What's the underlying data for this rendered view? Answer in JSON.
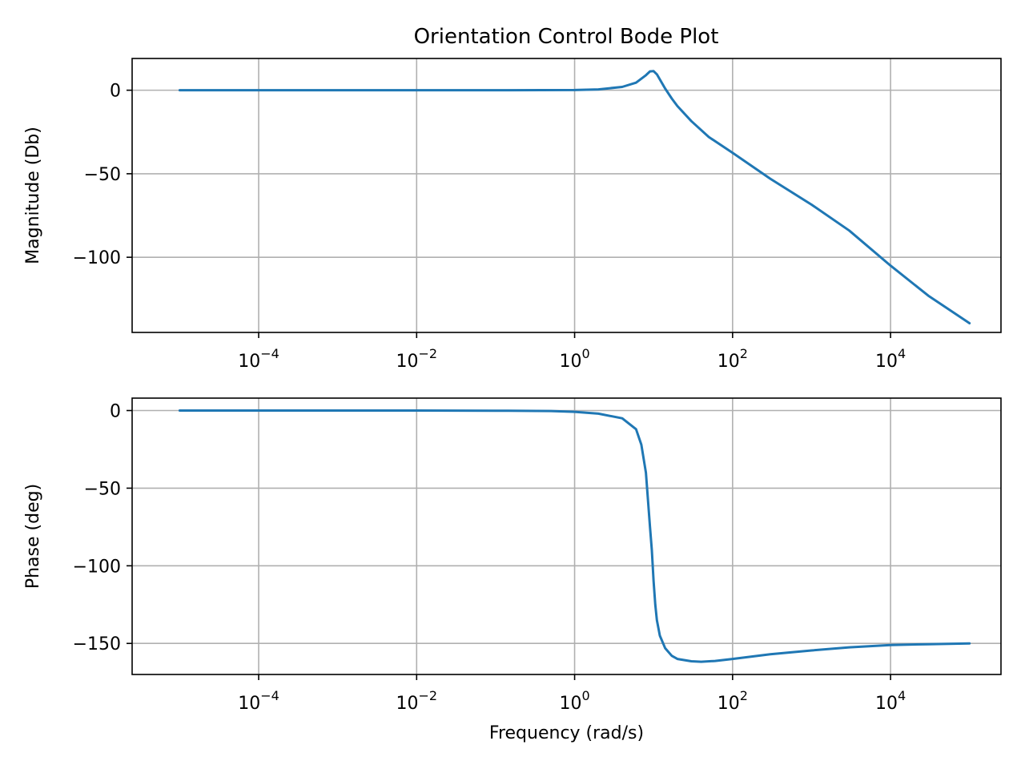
{
  "figure": {
    "title": "Orientation Control Bode Plot"
  },
  "chart_data": [
    {
      "type": "line",
      "panel": "magnitude",
      "title": "Orientation Control Bode Plot",
      "xlabel": "",
      "ylabel": "Magnitude (Db)",
      "xscale": "log",
      "xlim": [
        2.5e-06,
        250000
      ],
      "ylim": [
        -145,
        19
      ],
      "grid": true,
      "x_ticks": [
        {
          "value": 0.0001,
          "base": "10",
          "exp": "−4"
        },
        {
          "value": 0.01,
          "base": "10",
          "exp": "−2"
        },
        {
          "value": 1,
          "base": "10",
          "exp": "0"
        },
        {
          "value": 100,
          "base": "10",
          "exp": "2"
        },
        {
          "value": 10000,
          "base": "10",
          "exp": "4"
        }
      ],
      "y_ticks": [
        {
          "value": 0,
          "label": "0"
        },
        {
          "value": -50,
          "label": "−50"
        },
        {
          "value": -100,
          "label": "−100"
        }
      ],
      "series": [
        {
          "color": "#1f77b4",
          "x": [
            1e-05,
            0.0001,
            0.001,
            0.01,
            0.1,
            1,
            2,
            4,
            6,
            8,
            9,
            10,
            11,
            12,
            14,
            17,
            20,
            30,
            50,
            100,
            300,
            1000,
            3000,
            10000,
            30000,
            100000
          ],
          "y": [
            0,
            0,
            0,
            0,
            0,
            0.1,
            0.5,
            2,
            4.5,
            9,
            11.3,
            11.4,
            9.5,
            6.5,
            1,
            -5,
            -9.5,
            -18.5,
            -28,
            -37.5,
            -53,
            -68.5,
            -84,
            -105,
            -123,
            -139.5
          ]
        }
      ]
    },
    {
      "type": "line",
      "panel": "phase",
      "title": "",
      "xlabel": "Frequency (rad/s)",
      "ylabel": "Phase (deg)",
      "xscale": "log",
      "xlim": [
        2.5e-06,
        250000
      ],
      "ylim": [
        -170,
        8
      ],
      "grid": true,
      "x_ticks": [
        {
          "value": 0.0001,
          "base": "10",
          "exp": "−4"
        },
        {
          "value": 0.01,
          "base": "10",
          "exp": "−2"
        },
        {
          "value": 1,
          "base": "10",
          "exp": "0"
        },
        {
          "value": 100,
          "base": "10",
          "exp": "2"
        },
        {
          "value": 10000,
          "base": "10",
          "exp": "4"
        }
      ],
      "y_ticks": [
        {
          "value": 0,
          "label": "0"
        },
        {
          "value": -50,
          "label": "−50"
        },
        {
          "value": -100,
          "label": "−100"
        },
        {
          "value": -150,
          "label": "−150"
        }
      ],
      "series": [
        {
          "color": "#1f77b4",
          "x": [
            1e-05,
            0.001,
            0.01,
            0.1,
            0.5,
            1,
            2,
            4,
            6,
            7,
            8,
            9,
            9.5,
            10,
            10.5,
            11,
            12,
            14,
            17,
            20,
            30,
            40,
            60,
            100,
            300,
            1000,
            3000,
            10000,
            30000,
            100000
          ],
          "y": [
            0,
            0,
            0,
            -0.1,
            -0.3,
            -0.8,
            -2,
            -5,
            -12,
            -22,
            -40,
            -75,
            -90,
            -110,
            -125,
            -135,
            -145,
            -153,
            -158,
            -160,
            -161.5,
            -161.8,
            -161.3,
            -160,
            -157,
            -154.5,
            -152.5,
            -151,
            -150.5,
            -150
          ]
        }
      ]
    }
  ]
}
